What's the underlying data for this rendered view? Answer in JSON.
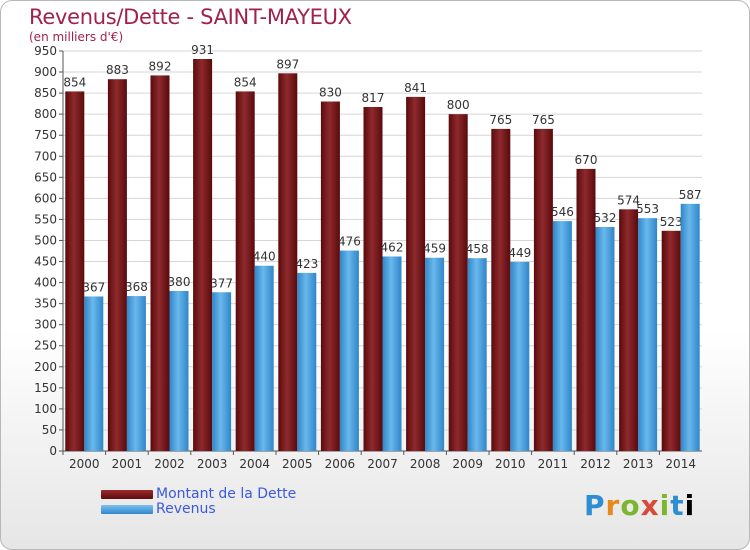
{
  "chart_data": {
    "type": "bar",
    "title": "Revenus/Dette - SAINT-MAYEUX",
    "subtitle": "(en milliers d'€)",
    "categories": [
      "2000",
      "2001",
      "2002",
      "2003",
      "2004",
      "2005",
      "2006",
      "2007",
      "2008",
      "2009",
      "2010",
      "2011",
      "2012",
      "2013",
      "2014"
    ],
    "series": [
      {
        "name": "Montant de la Dette",
        "color": "#7a1a1d",
        "values": [
          854,
          883,
          892,
          931,
          854,
          897,
          830,
          817,
          841,
          800,
          765,
          765,
          670,
          574,
          523
        ]
      },
      {
        "name": "Revenus",
        "color": "#4aa3e0",
        "values": [
          367,
          368,
          380,
          377,
          440,
          423,
          476,
          462,
          459,
          458,
          449,
          546,
          532,
          553,
          587
        ]
      }
    ],
    "ylim": [
      0,
      950
    ],
    "ytick_step": 50,
    "grid": true,
    "legend_position": "bottom-left"
  },
  "logo": {
    "letters": [
      "P",
      "r",
      "o",
      "x",
      "i",
      "t",
      "i"
    ],
    "text": "Proxiti"
  }
}
